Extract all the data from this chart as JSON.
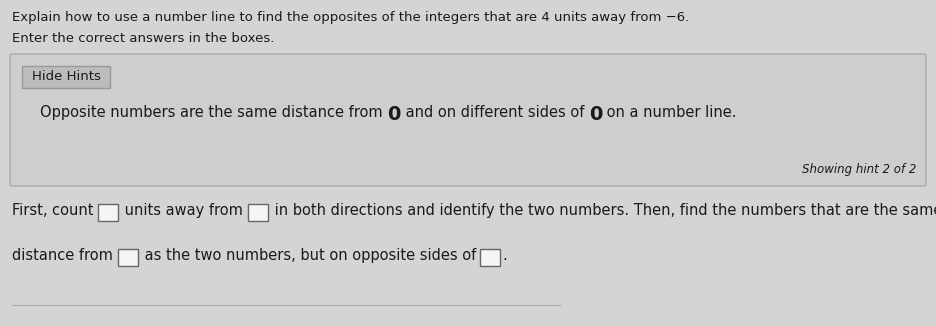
{
  "bg_color": "#d4d4d4",
  "title_text": "Explain how to use a number line to find the opposites of the integers that are 4 units away from −6.",
  "subtitle_text": "Enter the correct answers in the boxes.",
  "hint_button_bg": "#bcbcbc",
  "hint_button_text": "Hide Hints",
  "hint_button_border": "#999999",
  "hint_parts": [
    "Opposite numbers are the same distance from ",
    "0",
    " and on different sides of ",
    "0",
    " on a number line."
  ],
  "hint_showing": "Showing hint 2 of 2",
  "body_line1_parts": [
    {
      "t": "First, count ",
      "box": false
    },
    {
      "t": "",
      "box": true
    },
    {
      "t": " units away from ",
      "box": false
    },
    {
      "t": "",
      "box": true
    },
    {
      "t": " in both directions and identify the two numbers. Then, find the numbers that are the same",
      "box": false
    }
  ],
  "body_line2_parts": [
    {
      "t": "distance from ",
      "box": false
    },
    {
      "t": "",
      "box": true
    },
    {
      "t": " as the two numbers, but on opposite sides of ",
      "box": false
    },
    {
      "t": "",
      "box": true
    },
    {
      "t": ".",
      "box": false
    }
  ],
  "text_color": "#1a1a1a",
  "hint_text_color": "#1a1a1a",
  "font_size_title": 9.5,
  "font_size_body": 10.5,
  "font_size_hint": 10.5,
  "font_size_button": 9.5,
  "font_size_showing": 8.5,
  "hint_box_color": "#cecece",
  "hint_box_border": "#b0b0b0",
  "box_bg": "#f5f5f5",
  "box_border": "#666666"
}
